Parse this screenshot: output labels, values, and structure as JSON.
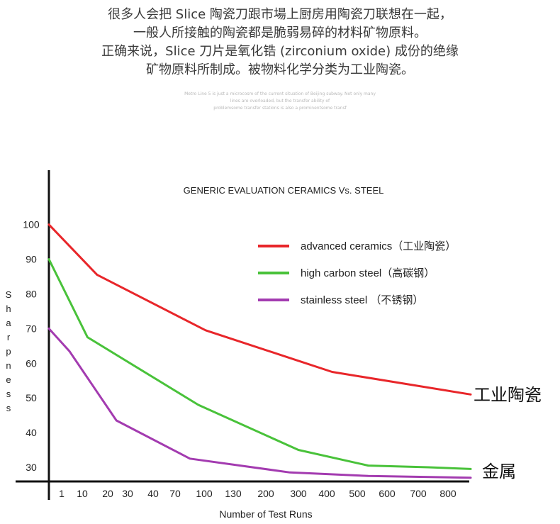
{
  "intro_lines": [
    "很多人会把 Slice 陶瓷刀跟市場上厨房用陶瓷刀联想在一起，",
    "一般人所接触的陶瓷都是脆弱易碎的材料矿物原料。",
    "正确来说，Slice 刀片是氧化锆 (zirconium oxide) 成份的绝缘",
    "矿物原料所制成。被物料化学分类为工业陶瓷。"
  ],
  "fine_print": [
    "Metro Line 5 is just a microcosm of the current situation of Beijing subway. Not only many",
    "lines are overloaded, but the transfer ability of",
    "problemsome transfer stations is also a prominentsome transf"
  ],
  "chart_data": {
    "type": "line",
    "title": "GENERIC EVALUATION CERAMICS Vs. STEEL",
    "xlabel": "Number of Test Runs",
    "ylabel": "Sharpness",
    "x_ticks": [
      "1",
      "10",
      "20",
      "30",
      "40",
      "70",
      "100",
      "130",
      "200",
      "300",
      "400",
      "500",
      "600",
      "700",
      "800"
    ],
    "y_ticks": [
      30,
      40,
      50,
      60,
      70,
      80,
      90,
      100
    ],
    "ylim": [
      27,
      107
    ],
    "grid": false,
    "legend_position": "top-right",
    "series": [
      {
        "name": "advanced ceramics（工业陶瓷）",
        "color": "#e8262a",
        "points": [
          [
            0,
            100
          ],
          [
            4,
            85.5
          ],
          [
            13,
            69.5
          ],
          [
            23.5,
            57.5
          ],
          [
            35,
            51
          ]
        ]
      },
      {
        "name": "high carbon steel（高碳钢）",
        "color": "#49c23a",
        "points": [
          [
            0,
            90
          ],
          [
            3.2,
            67.5
          ],
          [
            12.4,
            48
          ],
          [
            20.7,
            35
          ],
          [
            26.5,
            30.5
          ],
          [
            31.5,
            30
          ],
          [
            35,
            29.5
          ]
        ]
      },
      {
        "name": "stainless steel （不锈钢）",
        "color": "#a33bb0",
        "points": [
          [
            0,
            70
          ],
          [
            1.7,
            63.5
          ],
          [
            5.6,
            43.5
          ],
          [
            11.7,
            32.5
          ],
          [
            20,
            28.5
          ],
          [
            26.5,
            27.5
          ],
          [
            35,
            27
          ]
        ]
      }
    ],
    "annotations": [
      {
        "text": "工业陶瓷",
        "series": 0
      },
      {
        "text": "金属",
        "series": 1
      }
    ]
  }
}
